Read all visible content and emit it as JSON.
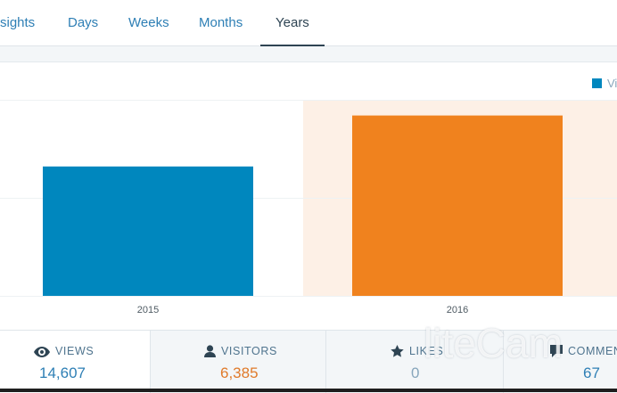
{
  "tabs": [
    {
      "label": "sights",
      "active": false
    },
    {
      "label": "Days",
      "active": false
    },
    {
      "label": "Weeks",
      "active": false
    },
    {
      "label": "Months",
      "active": false
    },
    {
      "label": "Years",
      "active": true
    }
  ],
  "legend": {
    "label": "Views",
    "color": "#0087be"
  },
  "chart_data": {
    "type": "bar",
    "categories": [
      "2015",
      "2016"
    ],
    "series": [
      {
        "name": "Views",
        "values": [
          6600,
          9200
        ]
      }
    ],
    "highlighted_category": "2016",
    "colors": {
      "default": "#0087be",
      "highlighted": "#f0821e",
      "highlight_band": "#fdf0e6"
    },
    "grid": true
  },
  "summary": [
    {
      "label": "VIEWS",
      "value": "14,607",
      "icon": "eye-icon",
      "value_color": "#2e7fb5"
    },
    {
      "label": "VISITORS",
      "value": "6,385",
      "icon": "person-icon",
      "value_color": "#e07a2a"
    },
    {
      "label": "LIKES",
      "value": "0",
      "icon": "star-icon",
      "value_color": "#87a6bc"
    },
    {
      "label": "COMMENTS",
      "value": "67",
      "icon": "comment-icon",
      "value_color": "#2e7fb5"
    }
  ],
  "watermark": "liteCam"
}
